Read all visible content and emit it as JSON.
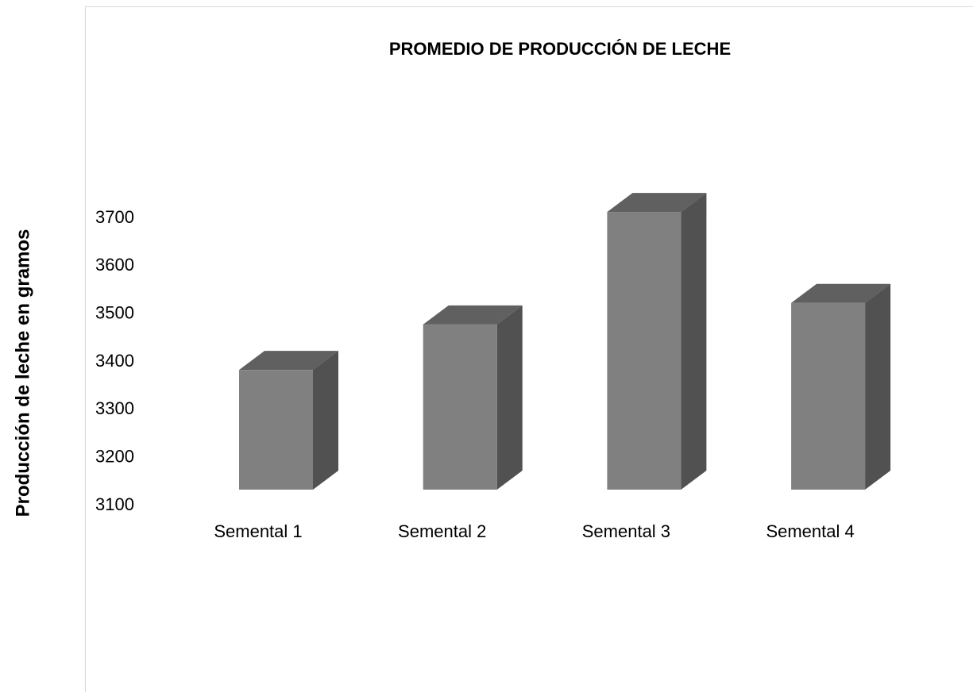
{
  "chart_data": {
    "type": "bar3d",
    "title": "PROMEDIO DE PRODUCCIÓN DE LECHE",
    "y_label": "Producción de leche en gramos",
    "categories": [
      "Semental 1",
      "Semental 2",
      "Semental 3",
      "Semental 4"
    ],
    "values": [
      3350,
      3445,
      3680,
      3490
    ],
    "color": "#808080",
    "ylim": [
      3100,
      3700
    ],
    "yticks": [
      3100,
      3200,
      3300,
      3400,
      3500,
      3600,
      3700
    ],
    "grid": false
  }
}
